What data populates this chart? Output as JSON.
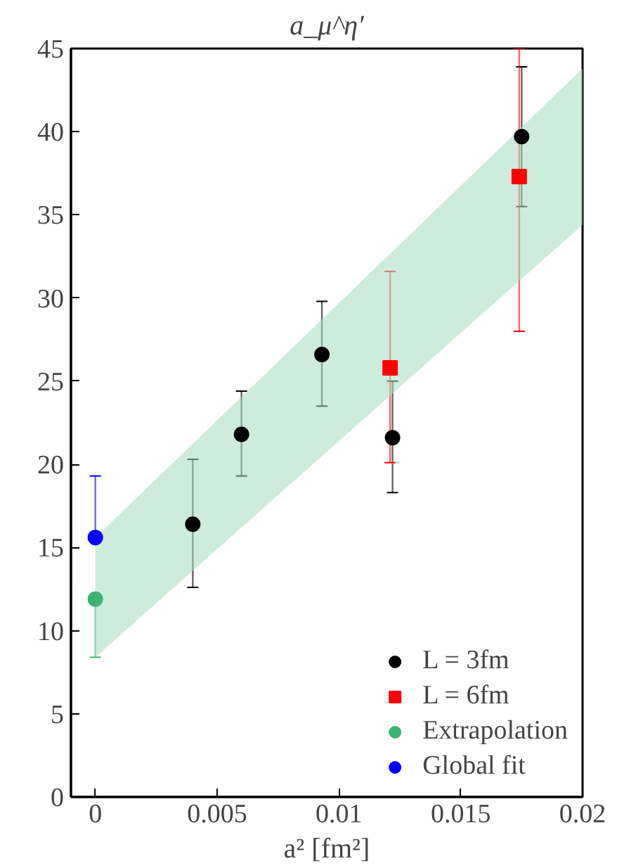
{
  "chart_data": {
    "type": "scatter",
    "title": "a_μ^η′",
    "xlabel": "a² [fm²]",
    "xlim": [
      -0.001,
      0.02
    ],
    "ylim": [
      0,
      45
    ],
    "xticks": [
      0,
      0.005,
      0.01,
      0.015,
      0.02
    ],
    "yticks": [
      0,
      5,
      10,
      15,
      20,
      25,
      30,
      35,
      40,
      45
    ],
    "grid": false,
    "legend": "bottom right",
    "series": [
      {
        "type": "area",
        "color": "#a6dcc0",
        "x": [
          0,
          0.005,
          0.01,
          0.015,
          0.02
        ],
        "values": [
          null,
          null,
          null,
          null,
          null
        ],
        "lower": [
          8.4,
          14.9,
          21.4,
          27.9,
          34.4
        ],
        "upper": [
          15.6,
          22.65,
          29.7,
          36.75,
          43.8
        ]
      },
      {
        "name": "L = 3fm",
        "color": "#000000",
        "marker": "circle",
        "x": [
          0.004,
          0.006,
          0.0093,
          0.0122,
          0.0175
        ],
        "values": [
          16.4,
          21.8,
          26.6,
          21.6,
          39.7
        ],
        "errors": [
          [
            12.6,
            20.3
          ],
          [
            19.3,
            24.4
          ],
          [
            23.5,
            29.8
          ],
          [
            18.3,
            25.0
          ],
          [
            35.5,
            43.9
          ]
        ]
      },
      {
        "name": "L = 6fm",
        "color": "#ff0000",
        "marker": "square",
        "x": [
          0.0121,
          0.0174
        ],
        "values": [
          25.8,
          37.3
        ],
        "errors": [
          [
            20.1,
            31.6
          ],
          [
            28.0,
            45
          ]
        ]
      },
      {
        "name": "Extrapolation",
        "color": "#3cb371",
        "marker": "circle",
        "x": [
          0
        ],
        "values": [
          11.9
        ],
        "errors": [
          [
            8.4,
            11.9
          ]
        ]
      },
      {
        "name": "Global fit",
        "color": "#0000ff",
        "marker": "circle",
        "x": [
          0
        ],
        "values": [
          15.6
        ],
        "errors": [
          [
            15.6,
            19.3
          ]
        ]
      }
    ]
  }
}
